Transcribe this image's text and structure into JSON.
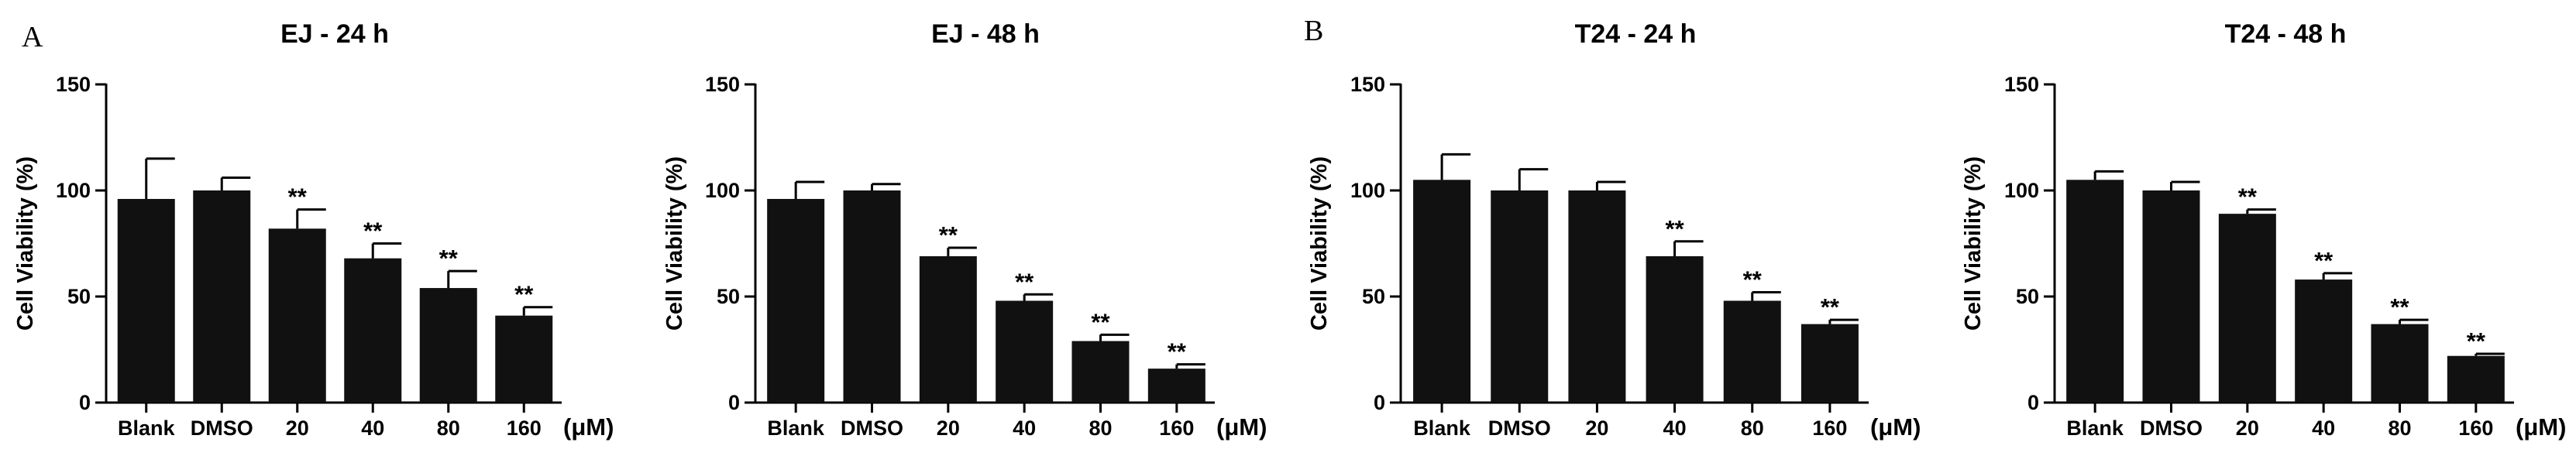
{
  "panel_labels": [
    "A",
    "B"
  ],
  "chart_data": [
    {
      "type": "bar",
      "title": "EJ - 24 h",
      "ylabel": "Cell Viability (%)",
      "xunit": "(μM)",
      "categories": [
        "Blank",
        "DMSO",
        "20",
        "40",
        "80",
        "160"
      ],
      "values": [
        96,
        100,
        82,
        68,
        54,
        41
      ],
      "errors": [
        19,
        6,
        9,
        7,
        8,
        4
      ],
      "significance": [
        "",
        "",
        "**",
        "**",
        "**",
        "**"
      ],
      "ylim": [
        0,
        150
      ],
      "yticks": [
        0,
        50,
        100,
        150
      ]
    },
    {
      "type": "bar",
      "title": "EJ - 48 h",
      "ylabel": "Cell Viability (%)",
      "xunit": "(μM)",
      "categories": [
        "Blank",
        "DMSO",
        "20",
        "40",
        "80",
        "160"
      ],
      "values": [
        96,
        100,
        69,
        48,
        29,
        16
      ],
      "errors": [
        8,
        3,
        4,
        3,
        3,
        2
      ],
      "significance": [
        "",
        "",
        "**",
        "**",
        "**",
        "**"
      ],
      "ylim": [
        0,
        150
      ],
      "yticks": [
        0,
        50,
        100,
        150
      ]
    },
    {
      "type": "bar",
      "title": "T24 - 24 h",
      "ylabel": "Cell Viability (%)",
      "xunit": "(μM)",
      "categories": [
        "Blank",
        "DMSO",
        "20",
        "40",
        "80",
        "160"
      ],
      "values": [
        105,
        100,
        100,
        69,
        48,
        37
      ],
      "errors": [
        12,
        10,
        4,
        7,
        4,
        2
      ],
      "significance": [
        "",
        "",
        "",
        "**",
        "**",
        "**"
      ],
      "ylim": [
        0,
        150
      ],
      "yticks": [
        0,
        50,
        100,
        150
      ]
    },
    {
      "type": "bar",
      "title": "T24 - 48 h",
      "ylabel": "Cell Viability (%)",
      "xunit": "(μM)",
      "categories": [
        "Blank",
        "DMSO",
        "20",
        "40",
        "80",
        "160"
      ],
      "values": [
        105,
        100,
        89,
        58,
        37,
        22
      ],
      "errors": [
        4,
        4,
        2,
        3,
        2,
        1
      ],
      "significance": [
        "",
        "",
        "**",
        "**",
        "**",
        "**"
      ],
      "ylim": [
        0,
        150
      ],
      "yticks": [
        0,
        50,
        100,
        150
      ]
    }
  ]
}
